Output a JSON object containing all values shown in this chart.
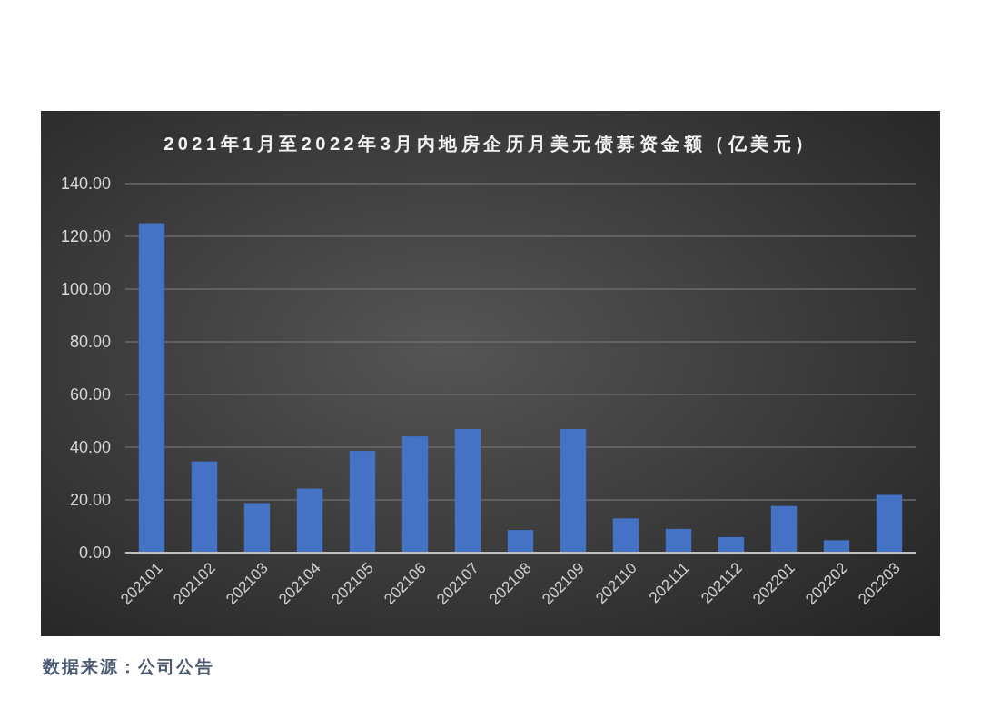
{
  "chart_data": {
    "type": "bar",
    "title": "2021年1月至2022年3月内地房企历月美元债募资金额（亿美元）",
    "categories": [
      "202101",
      "202102",
      "202103",
      "202104",
      "202105",
      "202106",
      "202107",
      "202108",
      "202109",
      "202110",
      "202111",
      "202112",
      "202201",
      "202202",
      "202203"
    ],
    "values": [
      125,
      34.6,
      18.8,
      24.3,
      38.6,
      44.1,
      46.9,
      8.6,
      46.9,
      13.0,
      9.0,
      5.9,
      17.7,
      4.7,
      21.9
    ],
    "color": "#4472c4",
    "ylim": [
      0,
      140
    ],
    "yticks": [
      {
        "value": 0,
        "label": "0.00"
      },
      {
        "value": 20,
        "label": "20.00"
      },
      {
        "value": 40,
        "label": "40.00"
      },
      {
        "value": 60,
        "label": "60.00"
      },
      {
        "value": 80,
        "label": "80.00"
      },
      {
        "value": 100,
        "label": "100.00"
      },
      {
        "value": 120,
        "label": "120.00"
      },
      {
        "value": 140,
        "label": "140.00"
      }
    ],
    "grid": "y",
    "annotations": [
      "数据来源：公司公告"
    ]
  }
}
